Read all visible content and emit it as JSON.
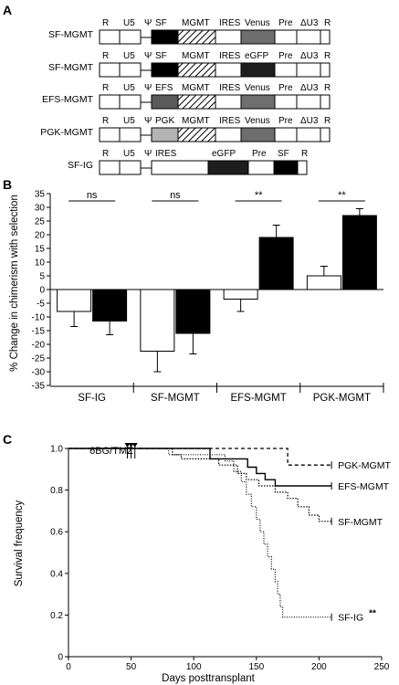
{
  "panels": {
    "a": {
      "letter": "A"
    },
    "b": {
      "letter": "B"
    },
    "c": {
      "letter": "C"
    }
  },
  "constructs": [
    {
      "name": "SF-MGMT",
      "labels": [
        "R",
        "U5",
        "Ψ",
        "SF",
        "MGMT",
        "IRES",
        "Venus",
        "Pre",
        "ΔU3",
        "R"
      ],
      "fills": [
        "#ffffff",
        "#ffffff",
        "",
        "#000000",
        "hatch",
        "#ffffff",
        "#6e6e6e",
        "#ffffff",
        "#ffffff",
        "#ffffff"
      ]
    },
    {
      "name": "SF-MGMT",
      "labels": [
        "R",
        "U5",
        "Ψ",
        "SF",
        "MGMT",
        "IRES",
        "eGFP",
        "Pre",
        "ΔU3",
        "R"
      ],
      "fills": [
        "#ffffff",
        "#ffffff",
        "",
        "#000000",
        "hatch",
        "#ffffff",
        "#1e1e1e",
        "#ffffff",
        "#ffffff",
        "#ffffff"
      ]
    },
    {
      "name": "EFS-MGMT",
      "labels": [
        "R",
        "U5",
        "Ψ",
        "EFS",
        "MGMT",
        "IRES",
        "Venus",
        "Pre",
        "ΔU3",
        "R"
      ],
      "fills": [
        "#ffffff",
        "#ffffff",
        "",
        "#5a5a5a",
        "hatch",
        "#ffffff",
        "#6e6e6e",
        "#ffffff",
        "#ffffff",
        "#ffffff"
      ]
    },
    {
      "name": "PGK-MGMT",
      "labels": [
        "R",
        "U5",
        "Ψ",
        "PGK",
        "MGMT",
        "IRES",
        "Venus",
        "Pre",
        "ΔU3",
        "R"
      ],
      "fills": [
        "#ffffff",
        "#ffffff",
        "",
        "#b4b4b4",
        "hatch",
        "#ffffff",
        "#6e6e6e",
        "#ffffff",
        "#ffffff",
        "#ffffff"
      ]
    },
    {
      "name": "SF-IG",
      "labels": [
        "R",
        "U5",
        "Ψ",
        "IRES",
        "eGFP",
        "Pre",
        "SF",
        "R"
      ],
      "fills": [
        "#ffffff",
        "#ffffff",
        "",
        "#ffffff",
        "#1e1e1e",
        "#ffffff",
        "#000000",
        "#ffffff"
      ]
    }
  ],
  "chart_data": [
    {
      "type": "bar",
      "panel": "B",
      "categories": [
        "SF-IG",
        "SF-MGMT",
        "EFS-MGMT",
        "PGK-MGMT"
      ],
      "series": [
        {
          "values": [
            -8,
            -22.5,
            -3.5,
            5
          ],
          "errors": [
            5.5,
            7.5,
            4.5,
            3.5
          ],
          "color": "#ffffff"
        },
        {
          "values": [
            -11.5,
            -16,
            19,
            27
          ],
          "errors": [
            5,
            7.5,
            4.5,
            2.5
          ],
          "color": "#000000"
        }
      ],
      "significance": [
        "ns",
        "ns",
        "**",
        "**"
      ],
      "ylabel": "% Change in chimerism with selection",
      "ylim": [
        -35,
        35
      ],
      "yticks": [
        35,
        30,
        25,
        20,
        15,
        10,
        5,
        0,
        -5,
        -10,
        -15,
        -20,
        -25,
        -30,
        -35
      ],
      "grid": false
    },
    {
      "type": "line",
      "panel": "C",
      "xlabel": "Days posttransplant",
      "ylabel": "Survival frequency",
      "xlim": [
        0,
        250
      ],
      "ylim": [
        0,
        1.0
      ],
      "xticks": [
        0,
        50,
        100,
        150,
        200,
        250
      ],
      "yticks": [
        0,
        0.2,
        0.4,
        0.6,
        0.8,
        1.0
      ],
      "treatment_label": "6BG/TMZ",
      "treatment_days": [
        47,
        50,
        53
      ],
      "series": [
        {
          "name": "PGK-MGMT",
          "dash": "4,3",
          "width": 1.3,
          "points": [
            [
              0,
              1.0
            ],
            [
              175,
              1.0
            ],
            [
              175,
              0.92
            ],
            [
              210,
              0.92
            ]
          ]
        },
        {
          "name": "EFS-MGMT",
          "dash": "",
          "width": 1.4,
          "points": [
            [
              0,
              1.0
            ],
            [
              113,
              1.0
            ],
            [
              113,
              0.95
            ],
            [
              143,
              0.95
            ],
            [
              143,
              0.91
            ],
            [
              150,
              0.91
            ],
            [
              150,
              0.88
            ],
            [
              157,
              0.88
            ],
            [
              157,
              0.85
            ],
            [
              165,
              0.85
            ],
            [
              165,
              0.82
            ],
            [
              210,
              0.82
            ]
          ]
        },
        {
          "name": "SF-MGMT",
          "dash": "1.5,1.5",
          "width": 1.2,
          "points": [
            [
              0,
              1.0
            ],
            [
              83,
              1.0
            ],
            [
              83,
              0.97
            ],
            [
              90,
              0.97
            ],
            [
              90,
              0.95
            ],
            [
              120,
              0.95
            ],
            [
              120,
              0.92
            ],
            [
              135,
              0.92
            ],
            [
              135,
              0.88
            ],
            [
              142,
              0.88
            ],
            [
              142,
              0.85
            ],
            [
              152,
              0.85
            ],
            [
              152,
              0.82
            ],
            [
              165,
              0.82
            ],
            [
              165,
              0.79
            ],
            [
              175,
              0.79
            ],
            [
              175,
              0.76
            ],
            [
              183,
              0.76
            ],
            [
              183,
              0.72
            ],
            [
              192,
              0.72
            ],
            [
              192,
              0.68
            ],
            [
              200,
              0.68
            ],
            [
              200,
              0.65
            ],
            [
              210,
              0.65
            ]
          ]
        },
        {
          "name": "SF-IG",
          "dash": "1,1.6",
          "width": 1.2,
          "points": [
            [
              0,
              1.0
            ],
            [
              80,
              1.0
            ],
            [
              80,
              0.97
            ],
            [
              125,
              0.97
            ],
            [
              125,
              0.94
            ],
            [
              132,
              0.94
            ],
            [
              132,
              0.89
            ],
            [
              138,
              0.89
            ],
            [
              138,
              0.84
            ],
            [
              142,
              0.84
            ],
            [
              142,
              0.78
            ],
            [
              146,
              0.78
            ],
            [
              146,
              0.72
            ],
            [
              150,
              0.72
            ],
            [
              150,
              0.66
            ],
            [
              153,
              0.66
            ],
            [
              153,
              0.6
            ],
            [
              156,
              0.6
            ],
            [
              156,
              0.54
            ],
            [
              159,
              0.54
            ],
            [
              159,
              0.48
            ],
            [
              162,
              0.48
            ],
            [
              162,
              0.42
            ],
            [
              165,
              0.42
            ],
            [
              165,
              0.36
            ],
            [
              167,
              0.36
            ],
            [
              167,
              0.3
            ],
            [
              169,
              0.3
            ],
            [
              169,
              0.24
            ],
            [
              171,
              0.24
            ],
            [
              171,
              0.19
            ],
            [
              210,
              0.19
            ]
          ]
        }
      ],
      "annotations": [
        {
          "series": "SF-IG",
          "text": "**"
        }
      ]
    }
  ]
}
